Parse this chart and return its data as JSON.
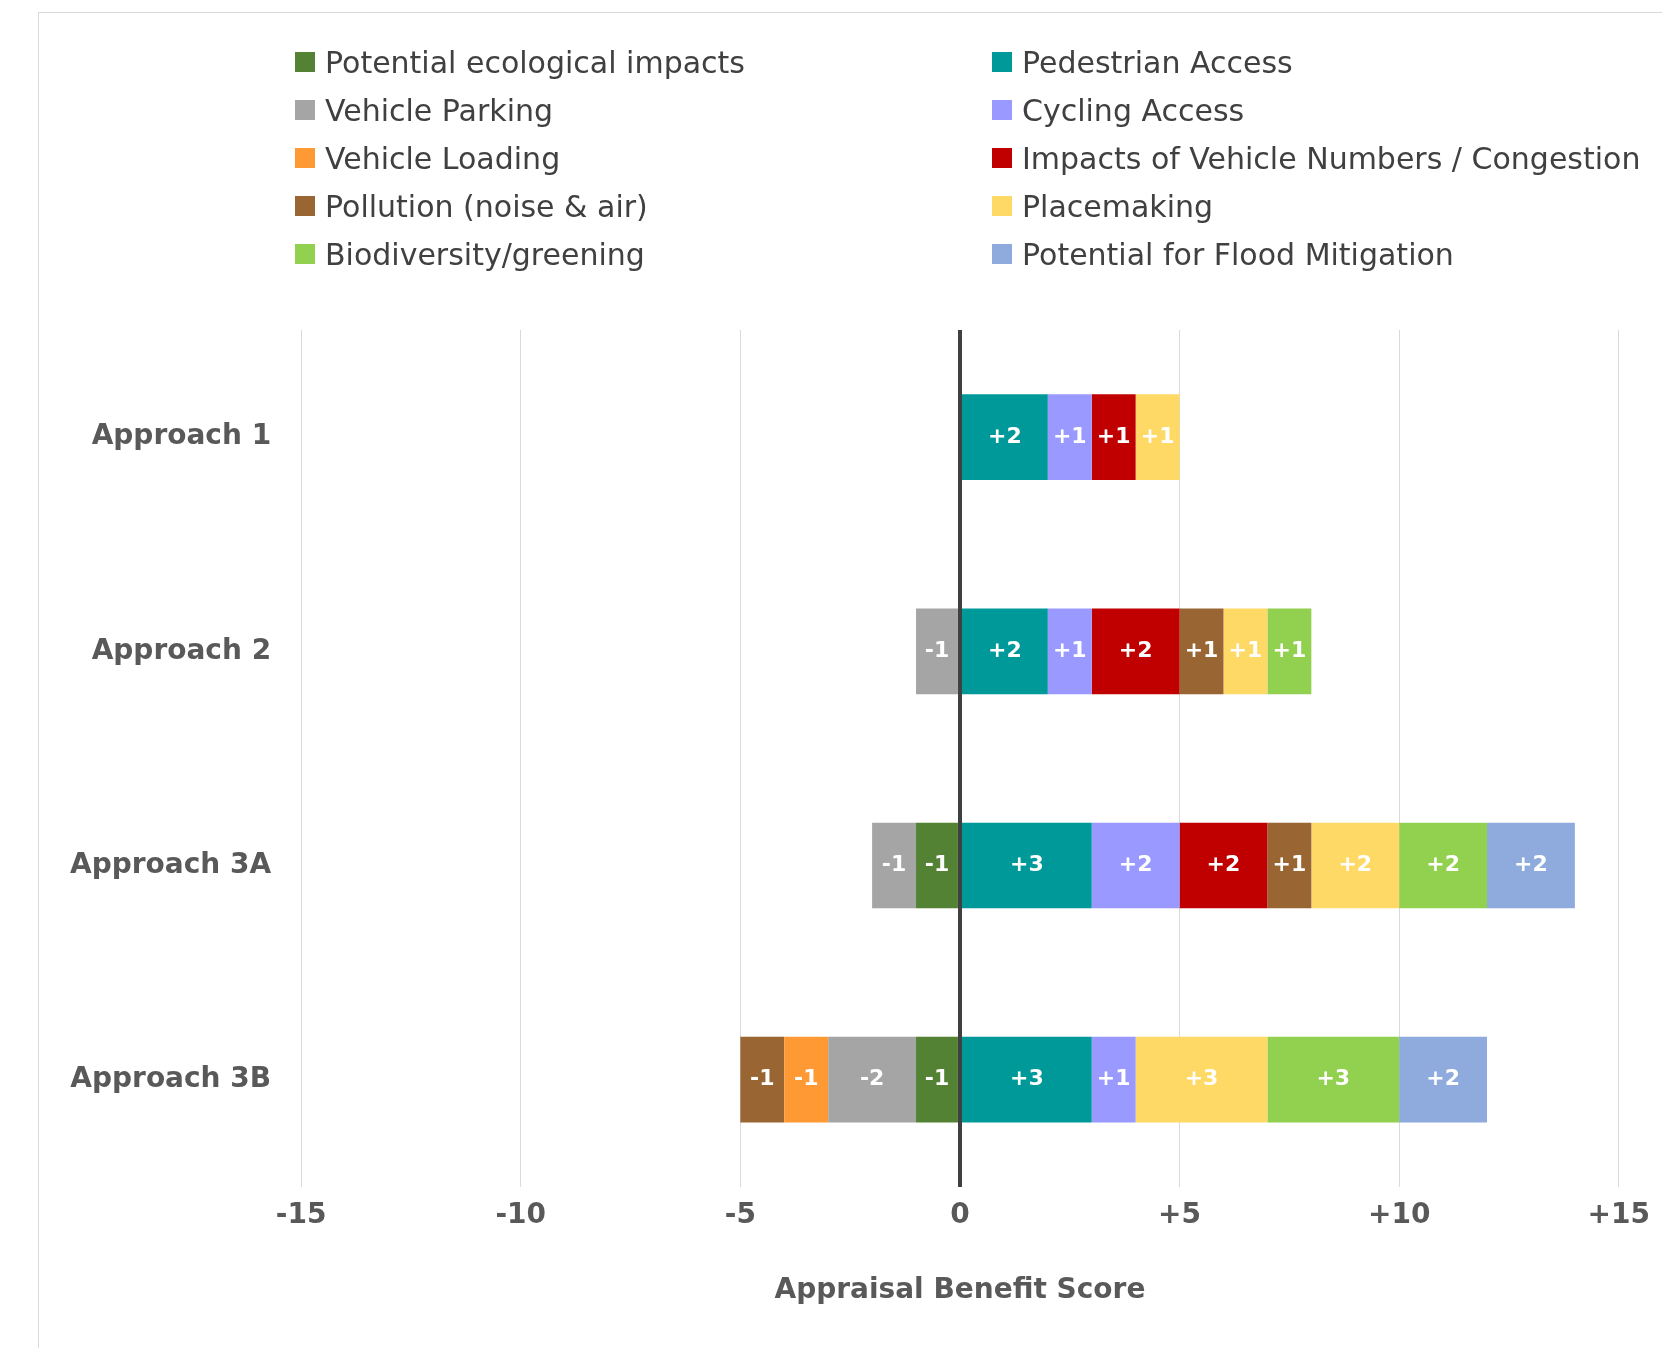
{
  "chart_data": {
    "type": "bar",
    "orientation": "horizontal",
    "stacked": true,
    "xlabel": "Appraisal Benefit Score",
    "categories": [
      "Approach 1",
      "Approach 2",
      "Approach 3A",
      "Approach 3B"
    ],
    "xlim": [
      -15,
      15
    ],
    "xticks": [
      -15,
      -10,
      -5,
      0,
      {
        "value": 5,
        "label": "+5"
      },
      {
        "value": 10,
        "label": "+10"
      },
      {
        "value": 15,
        "label": "+15"
      }
    ],
    "grid": "x",
    "legend": "top",
    "series": [
      {
        "name": "Potential ecological impacts",
        "color": "#548235",
        "values": [
          null,
          null,
          -1,
          -1
        ],
        "value_labels": [
          null,
          null,
          "-1",
          "-1"
        ]
      },
      {
        "name": "Pedestrian Access",
        "color": "#009999",
        "values": [
          2,
          2,
          3,
          3
        ],
        "value_labels": [
          "+2",
          "+2",
          "+3",
          "+3"
        ]
      },
      {
        "name": "Vehicle Parking",
        "color": "#a5a5a5",
        "values": [
          null,
          -1,
          -1,
          -2
        ],
        "value_labels": [
          null,
          "-1",
          "-1",
          "-2"
        ]
      },
      {
        "name": "Cycling Access",
        "color": "#9999ff",
        "values": [
          1,
          1,
          2,
          1
        ],
        "value_labels": [
          "+1",
          "+1",
          "+2",
          "+1"
        ]
      },
      {
        "name": "Vehicle Loading",
        "color": "#ff9933",
        "values": [
          null,
          null,
          null,
          -1
        ],
        "value_labels": [
          null,
          null,
          null,
          "-1"
        ]
      },
      {
        "name": "Impacts of Vehicle Numbers / Congestion",
        "color": "#c00000",
        "values": [
          1,
          2,
          2,
          null
        ],
        "value_labels": [
          "+1",
          "+2",
          "+2",
          null
        ]
      },
      {
        "name": "Pollution (noise & air)",
        "color": "#996633",
        "values": [
          null,
          1,
          1,
          -1
        ],
        "value_labels": [
          null,
          "+1",
          "+1",
          "-1"
        ]
      },
      {
        "name": "Placemaking",
        "color": "#ffd966",
        "values": [
          1,
          1,
          2,
          3
        ],
        "value_labels": [
          "+1",
          "+1",
          "+2",
          "+3"
        ]
      },
      {
        "name": "Biodiversity/greening",
        "color": "#92d050",
        "values": [
          null,
          1,
          2,
          3
        ],
        "value_labels": [
          null,
          "+1",
          "+2",
          "+3"
        ]
      },
      {
        "name": "Potential for Flood Mitigation",
        "color": "#8faadc",
        "values": [
          null,
          null,
          2,
          2
        ],
        "value_labels": [
          null,
          null,
          "+2",
          "+2"
        ]
      }
    ]
  }
}
